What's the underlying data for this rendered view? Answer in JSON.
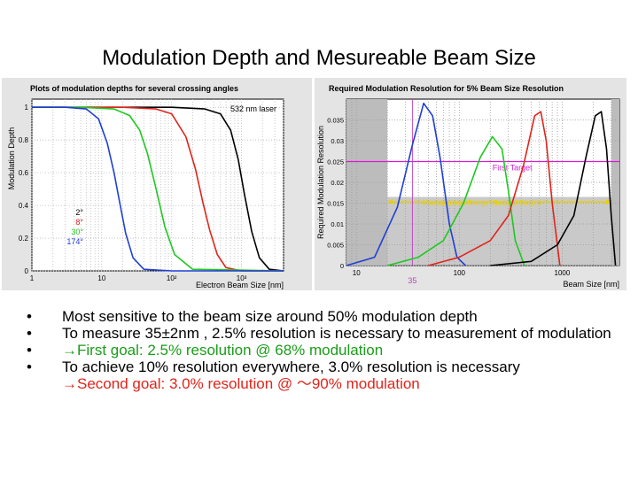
{
  "slide": {
    "title": "Modulation Depth and Mesureable Beam Size"
  },
  "bullets": [
    {
      "text": "Most sensitive to the beam size around 50% modulation depth"
    },
    {
      "text": "To measure 35±2nm , 2.5% resolution is necessary to measurement of modulation"
    },
    {
      "text": "→First goal: 2.5% resolution @ 68% modulation",
      "color": "#1a9c1a"
    },
    {
      "text": "To achieve 10% resolution everywhere, 3.0% resolution is necessary",
      "text2": "→Second goal: 3.0% resolution @ ～90% modulation",
      "color2": "#e0241b"
    }
  ],
  "chart_data": [
    {
      "type": "line",
      "title": "Plots of modulation depths for several crossing angles",
      "xlabel": "Electron Beam Size [nm]",
      "ylabel": "Modulation Depth",
      "xscale": "log",
      "xlim": [
        1,
        4000
      ],
      "ylim": [
        0,
        1.05
      ],
      "xticks": [
        {
          "v": 1,
          "l": "1"
        },
        {
          "v": 10,
          "l": "10"
        },
        {
          "v": 100,
          "l": "10²"
        },
        {
          "v": 1000,
          "l": "10³"
        }
      ],
      "yticks": [
        {
          "v": 0,
          "l": "0"
        },
        {
          "v": 0.2,
          "l": "0.2"
        },
        {
          "v": 0.4,
          "l": "0.4"
        },
        {
          "v": 0.6,
          "l": "0.6"
        },
        {
          "v": 0.8,
          "l": "0.8"
        },
        {
          "v": 1,
          "l": "1"
        }
      ],
      "annotation": "532 nm laser",
      "grid": true,
      "legend_position": "left-bottom",
      "series": [
        {
          "name": "2°",
          "color": "#000000",
          "x": [
            1,
            100,
            300,
            500,
            700,
            900,
            1100,
            1400,
            1800,
            2500,
            4000
          ],
          "y": [
            1,
            1,
            0.99,
            0.96,
            0.86,
            0.68,
            0.47,
            0.24,
            0.08,
            0.01,
            0
          ]
        },
        {
          "name": "8°",
          "color": "#e0241b",
          "x": [
            1,
            20,
            60,
            100,
            160,
            220,
            280,
            350,
            450,
            600,
            1000,
            4000
          ],
          "y": [
            1,
            1,
            0.99,
            0.96,
            0.82,
            0.62,
            0.42,
            0.25,
            0.1,
            0.02,
            0,
            0
          ]
        },
        {
          "name": "30°",
          "color": "#1fc81f",
          "x": [
            1,
            5,
            15,
            25,
            35,
            45,
            60,
            80,
            110,
            200,
            4000
          ],
          "y": [
            1,
            1,
            0.99,
            0.95,
            0.86,
            0.72,
            0.5,
            0.27,
            0.1,
            0.01,
            0
          ]
        },
        {
          "name": "174°",
          "color": "#1f3fd6",
          "x": [
            1,
            3,
            6,
            9,
            12,
            15,
            18,
            22,
            28,
            40,
            100,
            4000
          ],
          "y": [
            1,
            1,
            0.99,
            0.93,
            0.78,
            0.6,
            0.42,
            0.23,
            0.08,
            0.01,
            0,
            0
          ]
        }
      ]
    },
    {
      "type": "line",
      "title": "Required Modulation Resolution for 5% Beam Size Resolution",
      "xlabel": "Beam Size [nm]",
      "ylabel": "Required Modulation Resolution",
      "xscale": "log",
      "xlim": [
        8,
        3600
      ],
      "ylim": [
        0,
        0.04
      ],
      "xticks": [
        {
          "v": 10,
          "l": "10"
        },
        {
          "v": 100,
          "l": "100"
        },
        {
          "v": 1000,
          "l": "1000"
        }
      ],
      "yticks": [
        {
          "v": 0,
          "l": "0"
        },
        {
          "v": 0.005,
          "l": "0.005"
        },
        {
          "v": 0.01,
          "l": "0.01"
        },
        {
          "v": 0.015,
          "l": "0.015"
        },
        {
          "v": 0.02,
          "l": "0.02"
        },
        {
          "v": 0.025,
          "l": "0.025"
        },
        {
          "v": 0.03,
          "l": "0.03"
        },
        {
          "v": 0.035,
          "l": "0.035"
        }
      ],
      "x_marker": {
        "value": 35,
        "label": "35",
        "color": "#c040c0"
      },
      "horizontal_line": {
        "value": 0.025,
        "label": "First Target",
        "color": "#d81ad8"
      },
      "range_label": "Measurement Range (Second Target)",
      "range": [
        20,
        3000
      ],
      "shaded_outside": [
        [
          8,
          20
        ],
        [
          3000,
          3600
        ]
      ],
      "grid": true,
      "series": [
        {
          "color": "#1f3fd6",
          "x": [
            8,
            15,
            25,
            35,
            45,
            55,
            65,
            80,
            95,
            115
          ],
          "y": [
            0,
            0.002,
            0.014,
            0.029,
            0.039,
            0.036,
            0.026,
            0.01,
            0.002,
            0
          ]
        },
        {
          "color": "#1fc81f",
          "x": [
            20,
            40,
            70,
            110,
            160,
            210,
            260,
            300,
            350,
            430
          ],
          "y": [
            0,
            0.002,
            0.006,
            0.015,
            0.026,
            0.031,
            0.028,
            0.018,
            0.006,
            0
          ]
        },
        {
          "color": "#e0241b",
          "x": [
            50,
            100,
            200,
            300,
            420,
            540,
            620,
            700,
            800,
            950
          ],
          "y": [
            0,
            0.002,
            0.006,
            0.012,
            0.024,
            0.036,
            0.037,
            0.03,
            0.015,
            0
          ]
        },
        {
          "color": "#000000",
          "x": [
            200,
            500,
            900,
            1300,
            1700,
            2100,
            2400,
            2700,
            3000,
            3300
          ],
          "y": [
            0,
            0.001,
            0.005,
            0.012,
            0.026,
            0.036,
            0.037,
            0.028,
            0.012,
            0
          ]
        }
      ]
    }
  ]
}
